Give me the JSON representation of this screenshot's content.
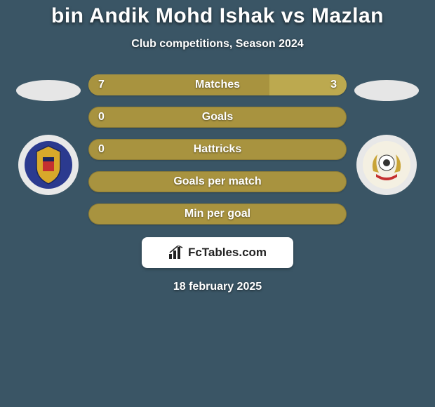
{
  "background_color": "#3a5565",
  "accent_color": "#a8933f",
  "accent_light": "#bca94f",
  "light_fill": "#e6e6e6",
  "text_color": "#ffffff",
  "title": "bin Andik Mohd Ishak vs Mazlan",
  "subtitle": "Club competitions, Season 2024",
  "bars": [
    {
      "label": "Matches",
      "left": "7",
      "right": "3",
      "left_pct": 70,
      "right_pct": 30
    },
    {
      "label": "Goals",
      "left": "0",
      "right": "",
      "left_pct": 0,
      "right_pct": 0
    },
    {
      "label": "Hattricks",
      "left": "0",
      "right": "",
      "left_pct": 0,
      "right_pct": 0
    },
    {
      "label": "Goals per match",
      "left": "",
      "right": "",
      "left_pct": 0,
      "right_pct": 0
    },
    {
      "label": "Min per goal",
      "left": "",
      "right": "",
      "left_pct": 0,
      "right_pct": 0
    }
  ],
  "brand": {
    "text": "FcTables.com",
    "bg": "#ffffff",
    "text_color": "#222222"
  },
  "date_line": "18 february 2025",
  "badges": {
    "left": {
      "circle_bg": "#e8e8e8",
      "inner_bg": "#2b3a8f",
      "accent": "#d8a92a"
    },
    "right": {
      "circle_bg": "#e8e8e8",
      "inner_bg": "#f4f0e2",
      "accent": "#c9a436"
    }
  },
  "bar_style": {
    "height": 30,
    "radius": 15,
    "label_fontsize": 16,
    "value_fontsize": 16
  }
}
